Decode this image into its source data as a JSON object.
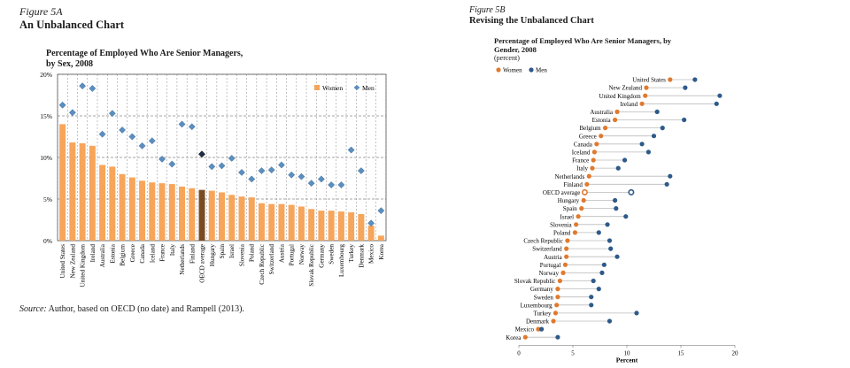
{
  "panel_a": {
    "figure_label": "Figure 5A",
    "figure_title": "An Unbalanced Chart",
    "chart_title_line1": "Percentage of Employed Who Are Senior Managers,",
    "chart_title_line2": "by Sex, 2008",
    "source_label": "Source:",
    "source_text": " Author, based on OECD (no date) and Rampell (2013)."
  },
  "panel_b": {
    "figure_label": "Figure 5B",
    "figure_title": "Revising the Unbalanced Chart",
    "chart_title_line1": "Percentage of Employed Who Are Senior Managers,  by",
    "chart_title_line2": "Gender, 2008",
    "chart_subtitle": "(percent)"
  },
  "colors": {
    "women_bar": "#f7a55a",
    "oecd_bar": "#7a4a22",
    "men_marker": "#5b8fc0",
    "oecd_men_marker": "#1f2f4a",
    "women_dot": "#e07a2e",
    "men_dot": "#2e5a8a",
    "grid": "#888888",
    "connector": "#bbbbbb"
  },
  "chart_data": [
    {
      "type": "bar",
      "legend_position": "top-right",
      "grid": true,
      "ylim": [
        0,
        20
      ],
      "yticks": [
        "0%",
        "5%",
        "10%",
        "15%",
        "20%"
      ],
      "categories": [
        "United States",
        "New Zealand",
        "United Kingdom",
        "Ireland",
        "Australia",
        "Estonia",
        "Belgium",
        "Greece",
        "Canada",
        "Iceland",
        "France",
        "Italy",
        "Netherlands",
        "Finland",
        "OECD average",
        "Hungary",
        "Spain",
        "Israel",
        "Slovenia",
        "Poland",
        "Czech Republic",
        "Switzerland",
        "Austria",
        "Portugal",
        "Norway",
        "Slovak Republic",
        "Germany",
        "Sweden",
        "Luxembourg",
        "Turkey",
        "Denmark",
        "Mexico",
        "Korea"
      ],
      "highlight_category": "OECD average",
      "series": [
        {
          "name": "Women",
          "mark": "bar",
          "values": [
            14.0,
            11.8,
            11.7,
            11.4,
            9.1,
            8.9,
            8.0,
            7.6,
            7.2,
            7.0,
            6.9,
            6.8,
            6.5,
            6.3,
            6.1,
            6.0,
            5.8,
            5.5,
            5.3,
            5.2,
            4.5,
            4.4,
            4.4,
            4.3,
            4.1,
            3.8,
            3.6,
            3.6,
            3.5,
            3.4,
            3.2,
            1.8,
            0.6
          ]
        },
        {
          "name": "Men",
          "mark": "diamond",
          "values": [
            16.3,
            15.4,
            18.6,
            18.3,
            12.8,
            15.3,
            13.3,
            12.5,
            11.4,
            12.0,
            9.8,
            9.2,
            14.0,
            13.7,
            10.4,
            8.9,
            9.0,
            9.9,
            8.2,
            7.4,
            8.4,
            8.5,
            9.1,
            7.9,
            7.7,
            6.9,
            7.4,
            6.7,
            6.7,
            10.9,
            8.4,
            2.1,
            3.6
          ]
        }
      ]
    },
    {
      "type": "dot",
      "legend_position": "top-left",
      "xlabel": "Percent",
      "xlim": [
        0,
        20
      ],
      "xticks": [
        0,
        5,
        10,
        15,
        20
      ],
      "categories": [
        "United States",
        "New Zealand",
        "United Kingdom",
        "Ireland",
        "Australia",
        "Estonia",
        "Belgium",
        "Greece",
        "Canada",
        "Iceland",
        "France",
        "Italy",
        "Netherlands",
        "Finland",
        "OECD average",
        "Hungary",
        "Spain",
        "Israel",
        "Slovenia",
        "Poland",
        "Czech Republic",
        "Switzerland",
        "Austria",
        "Portugal",
        "Norway",
        "Slovak Republic",
        "Germany",
        "Sweden",
        "Luxembourg",
        "Turkey",
        "Denmark",
        "Mexico",
        "Korea"
      ],
      "highlight_category": "OECD average",
      "series": [
        {
          "name": "Women",
          "values": [
            14.0,
            11.8,
            11.7,
            11.4,
            9.1,
            8.9,
            8.0,
            7.6,
            7.2,
            7.0,
            6.9,
            6.8,
            6.5,
            6.3,
            6.1,
            6.0,
            5.8,
            5.5,
            5.3,
            5.2,
            4.5,
            4.4,
            4.4,
            4.3,
            4.1,
            3.8,
            3.6,
            3.6,
            3.5,
            3.4,
            3.2,
            1.8,
            0.6
          ]
        },
        {
          "name": "Men",
          "values": [
            16.3,
            15.4,
            18.6,
            18.3,
            12.8,
            15.3,
            13.3,
            12.5,
            11.4,
            12.0,
            9.8,
            9.2,
            14.0,
            13.7,
            10.4,
            8.9,
            9.0,
            9.9,
            8.2,
            7.4,
            8.4,
            8.5,
            9.1,
            7.9,
            7.7,
            6.9,
            7.4,
            6.7,
            6.7,
            10.9,
            8.4,
            2.1,
            3.6
          ]
        }
      ]
    }
  ]
}
